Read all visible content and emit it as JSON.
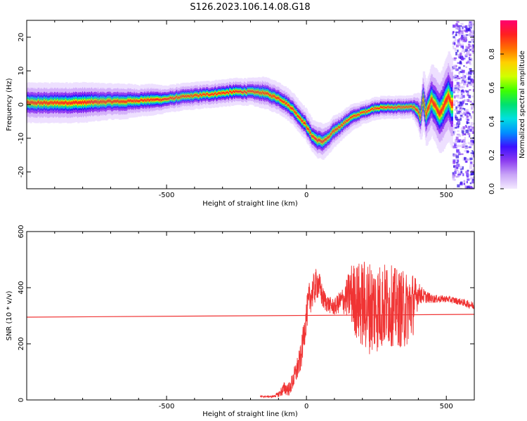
{
  "title": "S126.2023.106.14.08.G18",
  "chart_data": [
    {
      "type": "heatmap",
      "xlabel": "Height of straight line (km)",
      "ylabel": "Frequency (Hz)",
      "xlim": [
        -1000,
        600
      ],
      "ylim": [
        -25,
        25
      ],
      "xticks": [
        -500,
        0,
        500
      ],
      "yticks": [
        -20,
        -10,
        0,
        10,
        20
      ],
      "grid": false,
      "colorbar": {
        "label": "Normalized spectral amplitude",
        "range": [
          0,
          1
        ],
        "ticks": [
          0.0,
          0.2,
          0.4,
          0.6,
          0.8
        ],
        "colors": [
          "#f3eaff",
          "#c9a4f7",
          "#8b3cf0",
          "#3c10ff",
          "#0090ff",
          "#00e0e0",
          "#00e070",
          "#40ff00",
          "#d0ff00",
          "#ffd000",
          "#ff7000",
          "#ff2020",
          "#ff0070"
        ]
      },
      "ridge": {
        "x": [
          -1000,
          -900,
          -800,
          -700,
          -650,
          -600,
          -550,
          -500,
          -450,
          -400,
          -350,
          -300,
          -250,
          -200,
          -150,
          -100,
          -80,
          -50,
          -20,
          0,
          20,
          40,
          60,
          80,
          100,
          130,
          160,
          200,
          250,
          300,
          350,
          380,
          400,
          410,
          420,
          430,
          450,
          480,
          510,
          540
        ],
        "y": [
          0.5,
          0.5,
          0.6,
          0.9,
          0.9,
          1.2,
          1.4,
          1.6,
          2.2,
          2.6,
          3.0,
          3.4,
          3.8,
          3.8,
          3.5,
          2.0,
          1.0,
          -1.0,
          -4.0,
          -6.0,
          -9.0,
          -10.5,
          -11.0,
          -10.0,
          -8.0,
          -6.0,
          -4.0,
          -2.5,
          -1.0,
          -0.8,
          -0.8,
          -0.7,
          -1.5,
          -4.0,
          2.0,
          -3.0,
          1.5,
          -3.0,
          2.5,
          -4.0
        ],
        "width_hz": [
          4.5,
          4.5,
          4.5,
          4.0,
          4.0,
          3.5,
          3.5,
          3.0,
          3.0,
          3.0,
          3.0,
          3.0,
          3.0,
          3.0,
          3.5,
          3.5,
          3.5,
          3.5,
          3.5,
          3.5,
          3.5,
          4.0,
          4.0,
          3.5,
          3.5,
          3.0,
          3.0,
          2.5,
          2.5,
          2.5,
          2.5,
          2.5,
          4.0,
          5.0,
          6.0,
          7.0,
          8.0,
          9.0,
          10.0,
          10.0
        ]
      },
      "scatter_region": {
        "x": [
          520,
          600
        ],
        "ylim": [
          -25,
          25
        ]
      }
    },
    {
      "type": "line",
      "xlabel": "Height of straight line (km)",
      "ylabel": "SNR (10 * v/v)",
      "xlim": [
        -1000,
        600
      ],
      "ylim": [
        0,
        600
      ],
      "xticks": [
        -500,
        0,
        500
      ],
      "yticks": [
        0,
        200,
        400,
        600
      ],
      "grid": false,
      "series": [
        {
          "color": "#f03434",
          "x": [
            -1000,
            600
          ],
          "y": [
            295,
            305
          ]
        },
        {
          "color": "#f03434",
          "x": [
            -165,
            -120,
            -100,
            -80,
            -60,
            -40,
            -20,
            0,
            10,
            20,
            30,
            40,
            60,
            80,
            100,
            120,
            140,
            160,
            180,
            200,
            230,
            260,
            290,
            320,
            350,
            380,
            400,
            420,
            450,
            500,
            550,
            600
          ],
          "y": [
            12,
            12,
            20,
            40,
            40,
            90,
            150,
            300,
            360,
            380,
            400,
            420,
            360,
            340,
            330,
            350,
            360,
            380,
            350,
            340,
            330,
            330,
            340,
            330,
            320,
            340,
            380,
            370,
            360,
            360,
            350,
            335
          ],
          "noise_amplitude": [
            3,
            3,
            10,
            25,
            25,
            40,
            50,
            60,
            60,
            60,
            60,
            60,
            40,
            30,
            30,
            40,
            60,
            110,
            140,
            160,
            170,
            160,
            150,
            140,
            140,
            120,
            40,
            25,
            15,
            12,
            12,
            15
          ]
        }
      ]
    }
  ]
}
